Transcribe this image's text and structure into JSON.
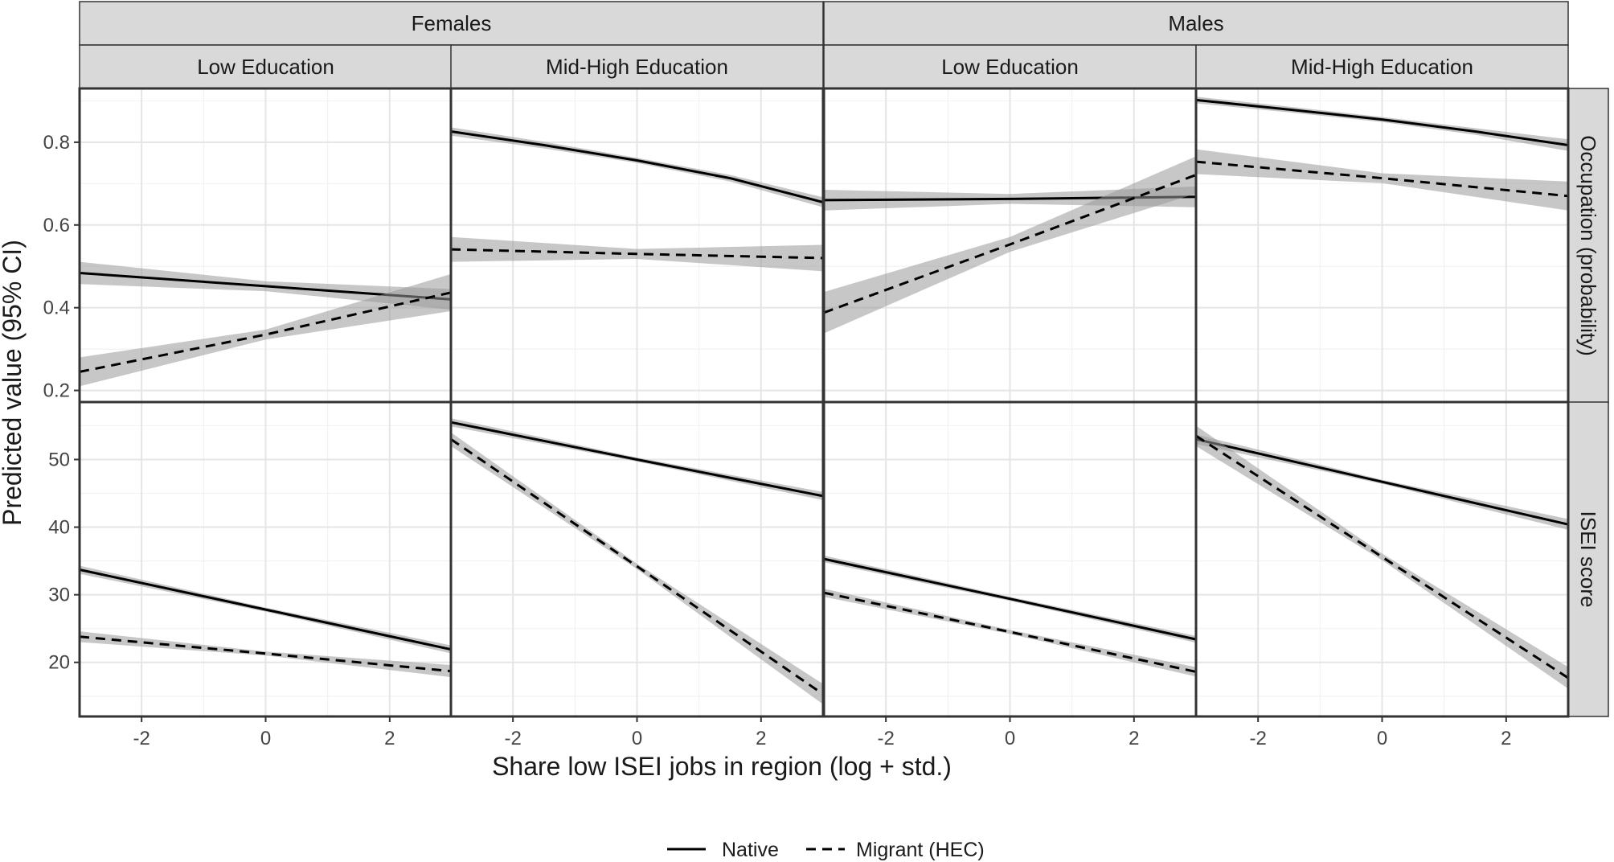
{
  "chart_data": {
    "type": "line",
    "ylabel": "Predicted value (95% CI)",
    "xlabel": "Share low ISEI jobs in region (log + std.)",
    "xlim": [
      -3.0,
      3.0
    ],
    "x_ticks": [
      -2,
      0,
      2
    ],
    "x_tick_labels": [
      "-2",
      "0",
      "2"
    ],
    "grid": true,
    "legend_position": "bottom",
    "legend": [
      {
        "name": "Native",
        "linetype": "solid"
      },
      {
        "name": "Migrant (HEC)",
        "linetype": "dashed"
      }
    ],
    "col_facets_outer": [
      "Females",
      "Males"
    ],
    "col_facets_inner": [
      "Low Education",
      "Mid-High Education",
      "Low Education",
      "Mid-High Education"
    ],
    "row_facets": [
      {
        "label": "Occupation (probability)",
        "ylim": [
          0.17,
          0.93
        ],
        "y_ticks": [
          0.2,
          0.4,
          0.6,
          0.8
        ],
        "y_tick_labels": [
          "0.2",
          "0.4",
          "0.6",
          "0.8"
        ]
      },
      {
        "label": "ISEI score",
        "ylim": [
          12.0,
          58.5
        ],
        "y_ticks": [
          20,
          30,
          40,
          50
        ],
        "y_tick_labels": [
          "20",
          "30",
          "40",
          "50"
        ]
      }
    ],
    "panels": [
      {
        "row": 0,
        "col": 0,
        "series": [
          {
            "name": "Native",
            "x": [
              -3,
              0,
              3
            ],
            "y": [
              0.484,
              0.452,
              0.42
            ],
            "ci": [
              0.027,
              0.012,
              0.025
            ]
          },
          {
            "name": "Migrant (HEC)",
            "x": [
              -3,
              0,
              3
            ],
            "y": [
              0.245,
              0.335,
              0.437
            ],
            "ci": [
              0.035,
              0.012,
              0.045
            ]
          }
        ]
      },
      {
        "row": 0,
        "col": 1,
        "series": [
          {
            "name": "Native",
            "x": [
              -3,
              -1.5,
              0,
              1.5,
              3
            ],
            "y": [
              0.826,
              0.793,
              0.756,
              0.713,
              0.655
            ],
            "ci": [
              0.01,
              0.008,
              0.006,
              0.008,
              0.012
            ]
          },
          {
            "name": "Migrant (HEC)",
            "x": [
              -3,
              0,
              3
            ],
            "y": [
              0.541,
              0.53,
              0.52
            ],
            "ci": [
              0.03,
              0.012,
              0.032
            ]
          }
        ]
      },
      {
        "row": 0,
        "col": 2,
        "series": [
          {
            "name": "Native",
            "x": [
              -3,
              0,
              3
            ],
            "y": [
              0.66,
              0.663,
              0.668
            ],
            "ci": [
              0.025,
              0.012,
              0.025
            ]
          },
          {
            "name": "Migrant (HEC)",
            "x": [
              -3,
              0,
              3
            ],
            "y": [
              0.388,
              0.553,
              0.721
            ],
            "ci": [
              0.05,
              0.018,
              0.045
            ]
          }
        ]
      },
      {
        "row": 0,
        "col": 3,
        "series": [
          {
            "name": "Native",
            "x": [
              -3,
              -1.5,
              0,
              1.5,
              3
            ],
            "y": [
              0.902,
              0.879,
              0.855,
              0.826,
              0.793
            ],
            "ci": [
              0.008,
              0.007,
              0.006,
              0.008,
              0.014
            ]
          },
          {
            "name": "Migrant (HEC)",
            "x": [
              -3,
              0,
              3
            ],
            "y": [
              0.753,
              0.713,
              0.67
            ],
            "ci": [
              0.03,
              0.012,
              0.035
            ]
          }
        ]
      },
      {
        "row": 1,
        "col": 0,
        "series": [
          {
            "name": "Native",
            "x": [
              -3,
              0,
              3
            ],
            "y": [
              33.7,
              27.8,
              21.9
            ],
            "ci": [
              0.6,
              0.3,
              0.6
            ]
          },
          {
            "name": "Migrant (HEC)",
            "x": [
              -3,
              0,
              3
            ],
            "y": [
              23.8,
              21.3,
              18.7
            ],
            "ci": [
              0.8,
              0.3,
              0.9
            ]
          }
        ]
      },
      {
        "row": 1,
        "col": 1,
        "series": [
          {
            "name": "Native",
            "x": [
              -3,
              0,
              3
            ],
            "y": [
              55.5,
              50.0,
              44.6
            ],
            "ci": [
              0.6,
              0.3,
              0.6
            ]
          },
          {
            "name": "Migrant (HEC)",
            "x": [
              -3,
              0,
              3
            ],
            "y": [
              53.0,
              34.2,
              15.3
            ],
            "ci": [
              1.0,
              0.4,
              1.5
            ]
          }
        ]
      },
      {
        "row": 1,
        "col": 2,
        "series": [
          {
            "name": "Native",
            "x": [
              -3,
              0,
              3
            ],
            "y": [
              35.3,
              29.4,
              23.4
            ],
            "ci": [
              0.5,
              0.3,
              0.5
            ]
          },
          {
            "name": "Migrant (HEC)",
            "x": [
              -3,
              0,
              3
            ],
            "y": [
              30.3,
              24.5,
              18.6
            ],
            "ci": [
              0.6,
              0.3,
              0.7
            ]
          }
        ]
      },
      {
        "row": 1,
        "col": 3,
        "series": [
          {
            "name": "Native",
            "x": [
              -3,
              0,
              3
            ],
            "y": [
              53.0,
              46.7,
              40.4
            ],
            "ci": [
              0.7,
              0.3,
              0.8
            ]
          },
          {
            "name": "Migrant (HEC)",
            "x": [
              -3,
              0,
              3
            ],
            "y": [
              53.5,
              35.6,
              17.7
            ],
            "ci": [
              1.5,
              0.5,
              1.6
            ]
          }
        ]
      }
    ]
  }
}
